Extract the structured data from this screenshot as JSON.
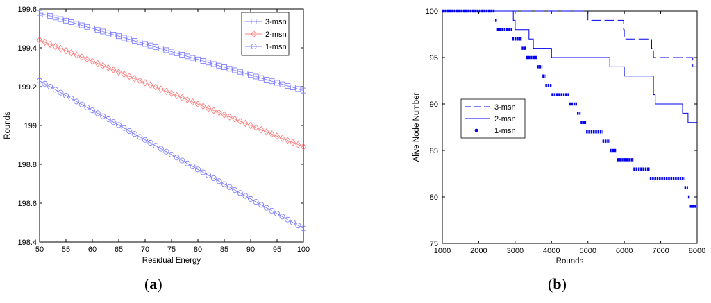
{
  "chart_data": [
    {
      "type": "line",
      "panel_label": "a",
      "title": "",
      "xlabel": "Residual Energy",
      "ylabel": "Rounds",
      "xlim": [
        50,
        100
      ],
      "ylim": [
        198.4,
        199.6
      ],
      "xticks": [
        50,
        55,
        60,
        65,
        70,
        75,
        80,
        85,
        90,
        95,
        100
      ],
      "yticks": [
        198.4,
        198.6,
        198.8,
        199,
        199.2,
        199.4,
        199.6
      ],
      "ytick_labels": [
        "198.4",
        "198.6",
        "198.8",
        "199",
        "199.2",
        "199.4",
        "199.6"
      ],
      "legend_position": "top-right",
      "series": [
        {
          "name": "3-msn",
          "color": "#7f7fff",
          "marker": "square",
          "x_start": 50,
          "x_end": 100,
          "x_step": 1,
          "y_start": 199.58,
          "y_end": 199.18
        },
        {
          "name": "2-msn",
          "color": "#ff7f7f",
          "marker": "diamond",
          "x_start": 50,
          "x_end": 100,
          "x_step": 1,
          "y_start": 199.44,
          "y_end": 198.89
        },
        {
          "name": "1-msn",
          "color": "#7f7fff",
          "marker": "circle",
          "x_start": 50,
          "x_end": 100,
          "x_step": 1,
          "y_start": 199.23,
          "y_end": 198.47
        }
      ]
    },
    {
      "type": "line",
      "panel_label": "b",
      "title": "",
      "xlabel": "Rounds",
      "ylabel": "Alive Node Number",
      "xlim": [
        1000,
        8000
      ],
      "ylim": [
        75,
        100
      ],
      "xticks": [
        1000,
        2000,
        3000,
        4000,
        5000,
        6000,
        7000,
        8000
      ],
      "yticks": [
        75,
        80,
        85,
        90,
        95,
        100
      ],
      "legend_position": "middle-left",
      "series": [
        {
          "name": "3-msn",
          "color": "#0000ee",
          "style": "dashed",
          "steps": [
            [
              1000,
              100
            ],
            [
              5000,
              100
            ],
            [
              5000,
              99
            ],
            [
              5980,
              99
            ],
            [
              5980,
              98
            ],
            [
              6000,
              98
            ],
            [
              6000,
              97
            ],
            [
              6750,
              97
            ],
            [
              6750,
              96
            ],
            [
              6800,
              96
            ],
            [
              6800,
              95
            ],
            [
              7880,
              95
            ],
            [
              7880,
              94
            ],
            [
              8000,
              94
            ]
          ]
        },
        {
          "name": "2-msn",
          "color": "#0000ee",
          "style": "solid",
          "steps": [
            [
              1000,
              100
            ],
            [
              2950,
              100
            ],
            [
              2950,
              99
            ],
            [
              3000,
              99
            ],
            [
              3000,
              98
            ],
            [
              3380,
              98
            ],
            [
              3380,
              97
            ],
            [
              3500,
              97
            ],
            [
              3500,
              96
            ],
            [
              4000,
              96
            ],
            [
              4000,
              95
            ],
            [
              5600,
              95
            ],
            [
              5600,
              94
            ],
            [
              6000,
              94
            ],
            [
              6000,
              93
            ],
            [
              6800,
              93
            ],
            [
              6800,
              91
            ],
            [
              6850,
              91
            ],
            [
              6850,
              90
            ],
            [
              7600,
              90
            ],
            [
              7600,
              89
            ],
            [
              7750,
              89
            ],
            [
              7750,
              88
            ],
            [
              8000,
              88
            ]
          ]
        },
        {
          "name": "1-msn",
          "color": "#0000ee",
          "style": "dots",
          "steps": [
            [
              1000,
              100
            ],
            [
              2450,
              100
            ],
            [
              2450,
              99
            ],
            [
              2500,
              99
            ],
            [
              2500,
              98
            ],
            [
              2920,
              98
            ],
            [
              2920,
              97
            ],
            [
              3180,
              97
            ],
            [
              3180,
              96
            ],
            [
              3300,
              96
            ],
            [
              3300,
              95
            ],
            [
              3600,
              95
            ],
            [
              3600,
              94
            ],
            [
              3750,
              94
            ],
            [
              3750,
              93
            ],
            [
              3830,
              93
            ],
            [
              3830,
              92
            ],
            [
              4000,
              92
            ],
            [
              4000,
              91
            ],
            [
              4480,
              91
            ],
            [
              4480,
              90
            ],
            [
              4700,
              90
            ],
            [
              4700,
              89
            ],
            [
              4800,
              89
            ],
            [
              4800,
              88
            ],
            [
              4950,
              88
            ],
            [
              4950,
              87
            ],
            [
              5400,
              87
            ],
            [
              5400,
              86
            ],
            [
              5600,
              86
            ],
            [
              5600,
              85
            ],
            [
              5800,
              85
            ],
            [
              5800,
              84
            ],
            [
              6250,
              84
            ],
            [
              6250,
              83
            ],
            [
              6700,
              83
            ],
            [
              6700,
              82
            ],
            [
              7650,
              82
            ],
            [
              7650,
              81
            ],
            [
              7750,
              81
            ],
            [
              7750,
              80
            ],
            [
              7800,
              80
            ],
            [
              7800,
              79
            ],
            [
              8000,
              79
            ]
          ]
        }
      ]
    }
  ]
}
